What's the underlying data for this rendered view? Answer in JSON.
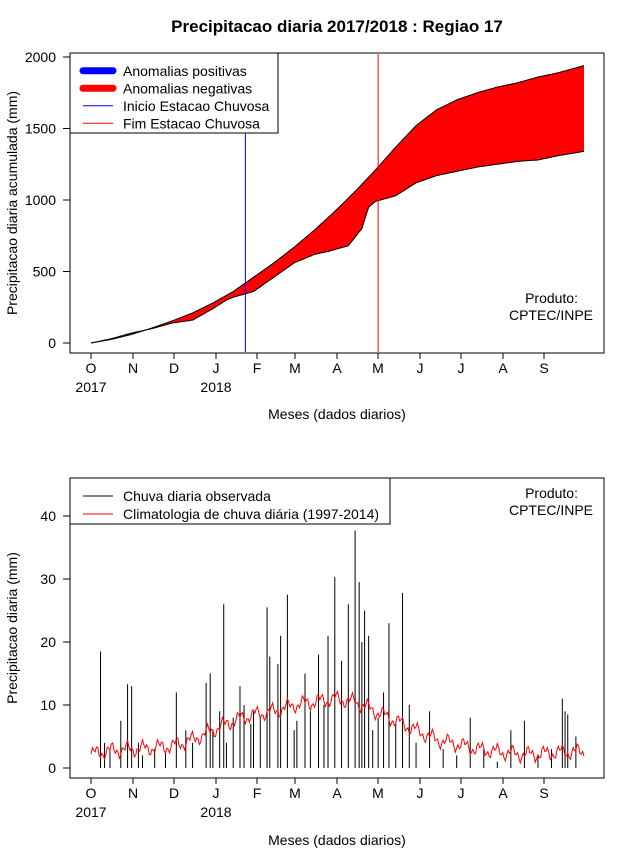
{
  "chart_data": [
    {
      "type": "area",
      "title": "Precipitacao diaria 2017/2018 : Regiao 17",
      "xlabel": "Meses (dados diarios)",
      "ylabel": "Precipitacao diaria acumulada (mm)",
      "ylim": [
        0,
        2000
      ],
      "yticks": [
        0,
        500,
        1000,
        1500,
        2000
      ],
      "month_ticks": [
        "O",
        "N",
        "D",
        "J",
        "F",
        "M",
        "A",
        "M",
        "J",
        "J",
        "A",
        "S"
      ],
      "year_ticks": [
        {
          "label": "2017",
          "month_index": 0
        },
        {
          "label": "2018",
          "month_index": 3
        }
      ],
      "legend": {
        "position": "top-left",
        "items": [
          {
            "label": "Anomalias positivas",
            "color": "#0000ff",
            "style": "thick"
          },
          {
            "label": "Anomalias negativas",
            "color": "#ff0000",
            "style": "thick"
          },
          {
            "label": "Inicio Estacao Chuvosa",
            "color": "#0000ff",
            "style": "thin"
          },
          {
            "label": "Fim Estacao Chuvosa",
            "color": "#ff0000",
            "style": "thin"
          }
        ]
      },
      "annotation": [
        "Produto:",
        "CPTEC/INPE"
      ],
      "vlines": [
        {
          "name": "Inicio Estacao Chuvosa",
          "day": 114,
          "color": "#0000ff"
        },
        {
          "name": "Fim Estacao Chuvosa",
          "day": 212,
          "color": "#ff0000"
        }
      ],
      "series": [
        {
          "name": "climatologia acumulada",
          "x": [
            0,
            15,
            30,
            45,
            60,
            75,
            90,
            105,
            120,
            135,
            150,
            165,
            180,
            195,
            210,
            225,
            240,
            255,
            270,
            285,
            300,
            315,
            330,
            345,
            364
          ],
          "values": [
            0,
            25,
            60,
            105,
            155,
            210,
            280,
            360,
            460,
            560,
            670,
            790,
            920,
            1060,
            1210,
            1370,
            1520,
            1630,
            1700,
            1750,
            1790,
            1820,
            1860,
            1890,
            1940
          ]
        },
        {
          "name": "observado acumulado",
          "x": [
            0,
            15,
            30,
            45,
            60,
            75,
            90,
            100,
            105,
            120,
            135,
            150,
            165,
            175,
            190,
            200,
            205,
            210,
            225,
            240,
            255,
            270,
            285,
            300,
            315,
            330,
            345,
            364
          ],
          "values": [
            0,
            30,
            70,
            100,
            140,
            160,
            240,
            300,
            320,
            360,
            460,
            560,
            620,
            640,
            680,
            800,
            950,
            990,
            1030,
            1120,
            1170,
            1200,
            1230,
            1250,
            1270,
            1280,
            1310,
            1340
          ]
        }
      ]
    },
    {
      "type": "line",
      "title": "",
      "xlabel": "Meses (dados diarios)",
      "ylabel": "Precipitacao diaria (mm)",
      "ylim": [
        0,
        45
      ],
      "yticks": [
        0,
        10,
        20,
        30,
        40
      ],
      "month_ticks": [
        "O",
        "N",
        "D",
        "J",
        "F",
        "M",
        "A",
        "M",
        "J",
        "J",
        "A",
        "S"
      ],
      "year_ticks": [
        {
          "label": "2017",
          "month_index": 0
        },
        {
          "label": "2018",
          "month_index": 3
        }
      ],
      "legend": {
        "position": "top-left",
        "items": [
          {
            "label": "Chuva diaria observada",
            "color": "#000000",
            "style": "thin"
          },
          {
            "label": "Climatologia de chuva diária (1997-2014)",
            "color": "#ff0000",
            "style": "thin"
          }
        ]
      },
      "annotation": [
        "Produto:",
        "CPTEC/INPE"
      ],
      "series": [
        {
          "name": "Chuva diaria observada",
          "x": [
            7,
            10,
            14,
            22,
            27,
            30,
            35,
            38,
            47,
            55,
            63,
            70,
            75,
            85,
            88,
            90,
            95,
            98,
            100,
            105,
            110,
            113,
            118,
            120,
            125,
            130,
            132,
            138,
            140,
            145,
            150,
            152,
            158,
            162,
            168,
            172,
            175,
            180,
            185,
            190,
            195,
            198,
            200,
            202,
            205,
            208,
            212,
            216,
            220,
            225,
            230,
            235,
            240,
            250,
            260,
            270,
            280,
            290,
            300,
            310,
            320,
            330,
            340,
            348,
            350,
            352,
            358
          ],
          "values": [
            18.5,
            4,
            3,
            7.5,
            13.3,
            13,
            4,
            2,
            3,
            2.5,
            12,
            6,
            4,
            13.5,
            15,
            6,
            9,
            26,
            4,
            8,
            13,
            10,
            7,
            9,
            8,
            25.5,
            17.7,
            16.5,
            21,
            27.5,
            6,
            7.5,
            15,
            9,
            18,
            10,
            21,
            30.3,
            17,
            26,
            37.7,
            29.5,
            20,
            25,
            21,
            6,
            8,
            12,
            23,
            7,
            27.8,
            10,
            4,
            9,
            3,
            2,
            8,
            3,
            1,
            6,
            7.5,
            2,
            3,
            11,
            9,
            8.5,
            5
          ]
        },
        {
          "name": "Climatologia de chuva diária (1997-2014)",
          "x": [
            0,
            15,
            30,
            45,
            60,
            75,
            90,
            105,
            120,
            135,
            150,
            165,
            180,
            195,
            210,
            225,
            240,
            255,
            270,
            285,
            300,
            315,
            330,
            345,
            364
          ],
          "values": [
            2.2,
            2.8,
            3.0,
            3.2,
            3.5,
            4.5,
            6.0,
            7.5,
            8.5,
            9.0,
            10.0,
            10.5,
            11.0,
            10.5,
            9.0,
            7.5,
            6.0,
            4.5,
            3.8,
            3.0,
            2.6,
            2.2,
            2.2,
            2.5,
            2.6
          ]
        }
      ]
    }
  ]
}
